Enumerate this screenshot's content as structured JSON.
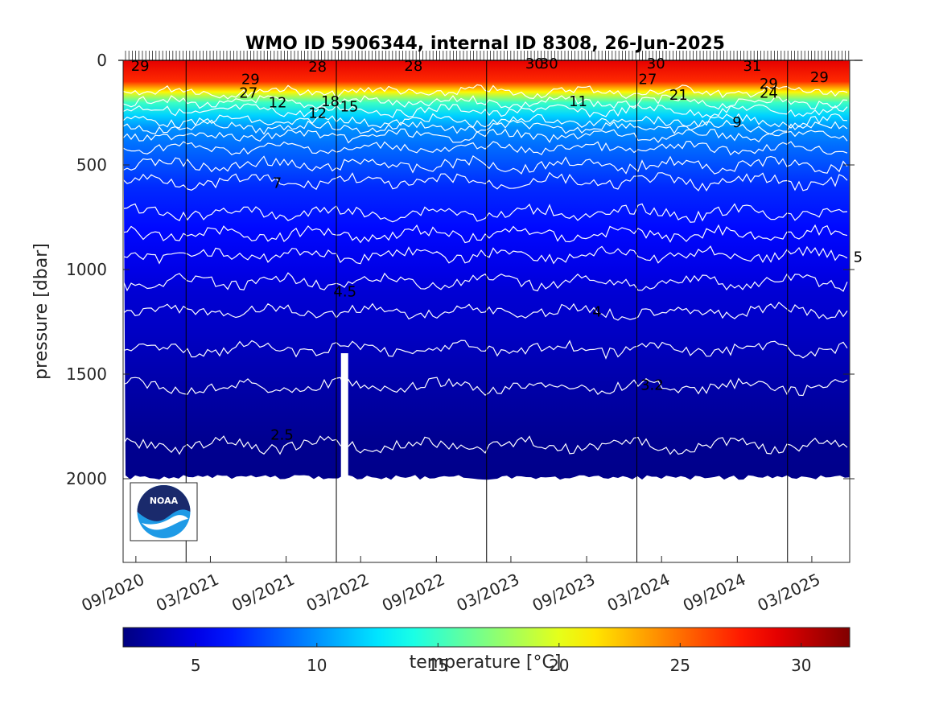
{
  "chart_data": {
    "type": "heatmap",
    "title": "WMO ID 5906344, internal ID 8308, 26-Jun-2025",
    "ylabel": "pressure [dbar]",
    "colorbar_label": "temperature [°C]",
    "x_tick_labels": [
      "09/2020",
      "03/2021",
      "09/2021",
      "03/2022",
      "09/2022",
      "03/2023",
      "09/2023",
      "03/2024",
      "09/2024",
      "03/2025"
    ],
    "x_range": [
      "2020-08",
      "2025-06"
    ],
    "y_ticks": [
      0,
      500,
      1000,
      1500,
      2000
    ],
    "y_range": [
      0,
      2400
    ],
    "y_reversed": true,
    "colorbar_ticks": [
      5,
      10,
      15,
      20,
      25,
      30
    ],
    "colorbar_range": [
      2,
      32
    ],
    "colormap": "jet",
    "colorbar_colors": [
      "#00008f",
      "#0000ff",
      "#00ffff",
      "#ffff00",
      "#ff0000",
      "#800000"
    ],
    "contour_line_color": "#ffffff",
    "grid": false,
    "year_divider_dates": [
      "2021-01",
      "2022-01",
      "2023-01",
      "2024-01",
      "2025-01"
    ],
    "profile_max_depth_dbar": 1990,
    "data_gap": {
      "date": "2022-01-20",
      "below_dbar": 1400
    },
    "temperature_profile": [
      {
        "pressure": 0,
        "temp": 29
      },
      {
        "pressure": 100,
        "temp": 27
      },
      {
        "pressure": 150,
        "temp": 21
      },
      {
        "pressure": 200,
        "temp": 15
      },
      {
        "pressure": 260,
        "temp": 12
      },
      {
        "pressure": 320,
        "temp": 10
      },
      {
        "pressure": 400,
        "temp": 9
      },
      {
        "pressure": 500,
        "temp": 8
      },
      {
        "pressure": 600,
        "temp": 7
      },
      {
        "pressure": 800,
        "temp": 6
      },
      {
        "pressure": 1000,
        "temp": 5
      },
      {
        "pressure": 1100,
        "temp": 4.5
      },
      {
        "pressure": 1300,
        "temp": 4
      },
      {
        "pressure": 1550,
        "temp": 3.2
      },
      {
        "pressure": 1800,
        "temp": 2.5
      },
      {
        "pressure": 2000,
        "temp": 2.3
      }
    ],
    "contours": [
      {
        "pressure": 150,
        "temp": 24
      },
      {
        "pressure": 200,
        "temp": 15
      },
      {
        "pressure": 240,
        "temp": 12
      },
      {
        "pressure": 290,
        "temp": 11
      },
      {
        "pressure": 320,
        "temp": 10
      },
      {
        "pressure": 360,
        "temp": 9
      },
      {
        "pressure": 420,
        "temp": 8.5
      },
      {
        "pressure": 500,
        "temp": 8
      },
      {
        "pressure": 580,
        "temp": 7
      },
      {
        "pressure": 730,
        "temp": 6.5
      },
      {
        "pressure": 830,
        "temp": 6
      },
      {
        "pressure": 930,
        "temp": 5.5
      },
      {
        "pressure": 1060,
        "temp": 5
      },
      {
        "pressure": 1200,
        "temp": 4.5
      },
      {
        "pressure": 1380,
        "temp": 4
      },
      {
        "pressure": 1560,
        "temp": 3.2
      },
      {
        "pressure": 1840,
        "temp": 2.5
      }
    ],
    "contour_labels": [
      {
        "text": "29",
        "date": "2020-08-20",
        "pressure": 30
      },
      {
        "text": "29",
        "date": "2021-05-15",
        "pressure": 95
      },
      {
        "text": "27",
        "date": "2021-05-10",
        "pressure": 160
      },
      {
        "text": "12",
        "date": "2021-07-20",
        "pressure": 205
      },
      {
        "text": "28",
        "date": "2021-10-25",
        "pressure": 35
      },
      {
        "text": "12",
        "date": "2021-10-25",
        "pressure": 255
      },
      {
        "text": "18",
        "date": "2021-11-25",
        "pressure": 200
      },
      {
        "text": "15",
        "date": "2022-01-10",
        "pressure": 225
      },
      {
        "text": "28",
        "date": "2022-06-15",
        "pressure": 30
      },
      {
        "text": "30",
        "date": "2023-04-05",
        "pressure": 20
      },
      {
        "text": "30",
        "date": "2023-05-10",
        "pressure": 20
      },
      {
        "text": "11",
        "date": "2023-07-20",
        "pressure": 200
      },
      {
        "text": "30",
        "date": "2024-01-25",
        "pressure": 20
      },
      {
        "text": "27",
        "date": "2024-01-05",
        "pressure": 95
      },
      {
        "text": "21",
        "date": "2024-03-20",
        "pressure": 170
      },
      {
        "text": "31",
        "date": "2024-09-15",
        "pressure": 30
      },
      {
        "text": "29",
        "date": "2024-10-25",
        "pressure": 115
      },
      {
        "text": "24",
        "date": "2024-10-25",
        "pressure": 160
      },
      {
        "text": "9",
        "date": "2024-08-20",
        "pressure": 300
      },
      {
        "text": "29",
        "date": "2025-02-25",
        "pressure": 85
      },
      {
        "text": "7",
        "date": "2021-07-30",
        "pressure": 590
      },
      {
        "text": "5",
        "date": "2025-06-10",
        "pressure": 945
      },
      {
        "text": "4.5",
        "date": "2021-12-25",
        "pressure": 1110
      },
      {
        "text": "4",
        "date": "2023-09-15",
        "pressure": 1205
      },
      {
        "text": "3.2",
        "date": "2024-01-10",
        "pressure": 1555
      },
      {
        "text": "2.5",
        "date": "2021-07-25",
        "pressure": 1795
      }
    ]
  }
}
